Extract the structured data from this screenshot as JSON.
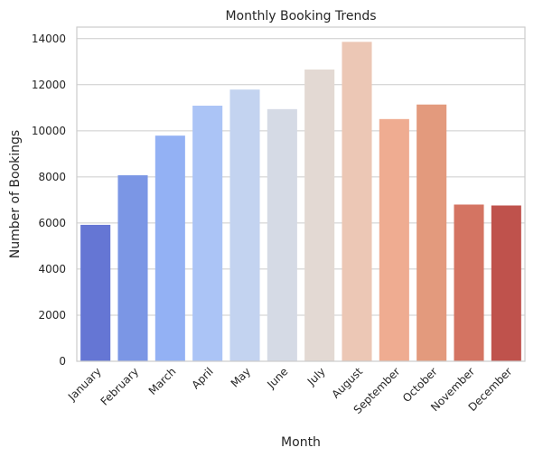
{
  "chart_data": {
    "type": "bar",
    "title": "Monthly Booking Trends",
    "xlabel": "Month",
    "ylabel": "Number of Bookings",
    "categories": [
      "January",
      "February",
      "March",
      "April",
      "May",
      "June",
      "July",
      "August",
      "September",
      "October",
      "November",
      "December"
    ],
    "values": [
      5920,
      8070,
      9790,
      11090,
      11790,
      10940,
      12660,
      13860,
      10510,
      11140,
      6800,
      6760
    ],
    "ylim": [
      0,
      14500
    ],
    "yticks": [
      0,
      2000,
      4000,
      6000,
      8000,
      10000,
      12000,
      14000
    ],
    "grid": "horizontal",
    "colors": [
      "#6576d4",
      "#7b96e5",
      "#93b1f4",
      "#abc4f6",
      "#c3d3f0",
      "#d5dae5",
      "#e3d9d3",
      "#ecc7b5",
      "#efac91",
      "#e39a7d",
      "#d47462",
      "#bf524c"
    ]
  }
}
